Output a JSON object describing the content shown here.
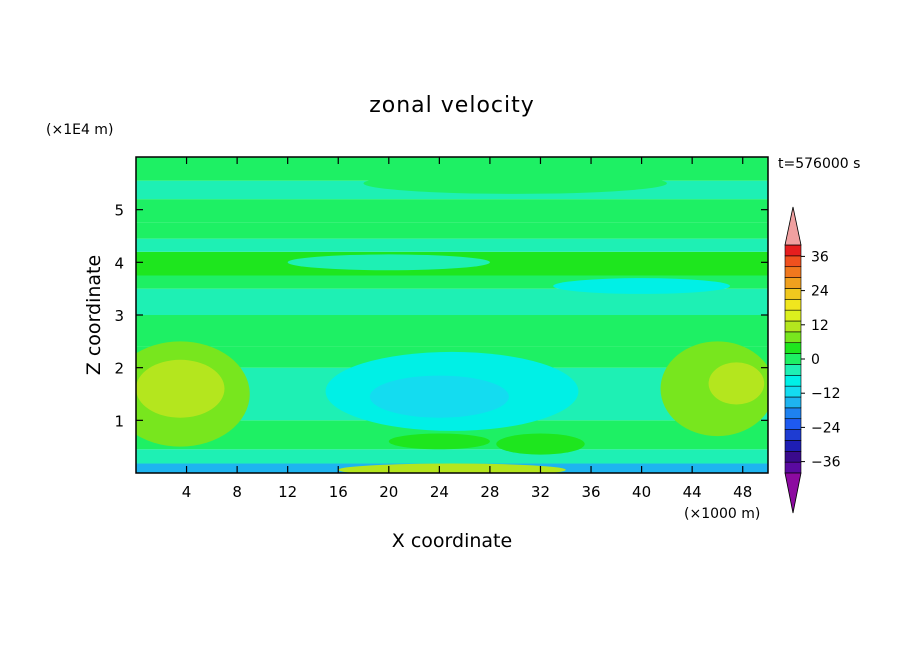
{
  "chart_data": {
    "type": "heatmap",
    "title": "zonal velocity",
    "xlabel": "X coordinate",
    "ylabel": "Z coordinate",
    "x_unit": "(×1000 m)",
    "y_unit": "(×1E4 m)",
    "time_label": "t=576000 s",
    "x_range": [
      0,
      50
    ],
    "y_range": [
      0,
      6
    ],
    "x_ticks": [
      4,
      8,
      12,
      16,
      20,
      24,
      28,
      32,
      36,
      40,
      44,
      48
    ],
    "y_ticks": [
      1,
      2,
      3,
      4,
      5
    ],
    "colorbar": {
      "levels": [
        -40,
        -36,
        -32,
        -28,
        -24,
        -20,
        -16,
        -12,
        -8,
        -4,
        0,
        4,
        8,
        12,
        16,
        20,
        24,
        28,
        32,
        36,
        40
      ],
      "colors": [
        "#5a0aa0",
        "#3a0a8c",
        "#1e1eb4",
        "#1e3cd2",
        "#1e5af0",
        "#1e82f0",
        "#1eb4f0",
        "#14dcf0",
        "#00f0e6",
        "#1ef0b4",
        "#1ef064",
        "#1ee61e",
        "#78e61e",
        "#b4e61e",
        "#dcf01e",
        "#f0e61e",
        "#f0c81e",
        "#f0a01e",
        "#f0781e",
        "#f0501e",
        "#e61e1e"
      ],
      "under_color": "#8c0aa0",
      "over_color": "#f0a0a0",
      "tick_labels": [
        "36",
        "24",
        "12",
        "0",
        "−12",
        "−24",
        "−36"
      ],
      "tick_values": [
        36,
        24,
        12,
        0,
        -12,
        -24,
        -36
      ]
    },
    "bands": [
      {
        "z": [
          0.0,
          0.18
        ],
        "value": -14
      },
      {
        "z": [
          0.18,
          0.45
        ],
        "value": -2
      },
      {
        "z": [
          0.45,
          0.75
        ],
        "value": 2
      },
      {
        "z": [
          0.75,
          1.0
        ],
        "value": 1
      },
      {
        "z": [
          1.0,
          2.0
        ],
        "value": -3
      },
      {
        "z": [
          2.0,
          2.4
        ],
        "value": 1
      },
      {
        "z": [
          2.4,
          3.0
        ],
        "value": 2
      },
      {
        "z": [
          3.0,
          3.5
        ],
        "value": -2
      },
      {
        "z": [
          3.5,
          3.75
        ],
        "value": 2
      },
      {
        "z": [
          3.75,
          4.2
        ],
        "value": 6
      },
      {
        "z": [
          4.2,
          4.45
        ],
        "value": -2
      },
      {
        "z": [
          4.45,
          4.75
        ],
        "value": 3
      },
      {
        "z": [
          4.75,
          5.2
        ],
        "value": 2
      },
      {
        "z": [
          5.2,
          5.55
        ],
        "value": -2
      },
      {
        "z": [
          5.55,
          6.0
        ],
        "value": 2
      }
    ],
    "features": [
      {
        "x": 3.5,
        "z": 1.5,
        "rx": 5.5,
        "rz": 1.0,
        "value": 9
      },
      {
        "x": 3.5,
        "z": 1.6,
        "rx": 3.5,
        "rz": 0.55,
        "value": 13
      },
      {
        "x": 25,
        "z": 1.55,
        "rx": 10,
        "rz": 0.75,
        "value": -7
      },
      {
        "x": 24,
        "z": 1.45,
        "rx": 5.5,
        "rz": 0.4,
        "value": -10
      },
      {
        "x": 46,
        "z": 1.6,
        "rx": 4.5,
        "rz": 0.9,
        "value": 9
      },
      {
        "x": 47.5,
        "z": 1.7,
        "rx": 2.2,
        "rz": 0.4,
        "value": 13
      },
      {
        "x": 25,
        "z": 0.06,
        "rx": 9,
        "rz": 0.12,
        "value": 13
      },
      {
        "x": 24,
        "z": 0.6,
        "rx": 4,
        "rz": 0.15,
        "value": 6
      },
      {
        "x": 32,
        "z": 0.55,
        "rx": 3.5,
        "rz": 0.2,
        "value": 6
      },
      {
        "x": 20,
        "z": 4.0,
        "rx": 8,
        "rz": 0.15,
        "value": -1
      },
      {
        "x": 30,
        "z": 5.5,
        "rx": 12,
        "rz": 0.2,
        "value": 1
      },
      {
        "x": 40,
        "z": 3.55,
        "rx": 7,
        "rz": 0.15,
        "value": -8
      }
    ]
  }
}
